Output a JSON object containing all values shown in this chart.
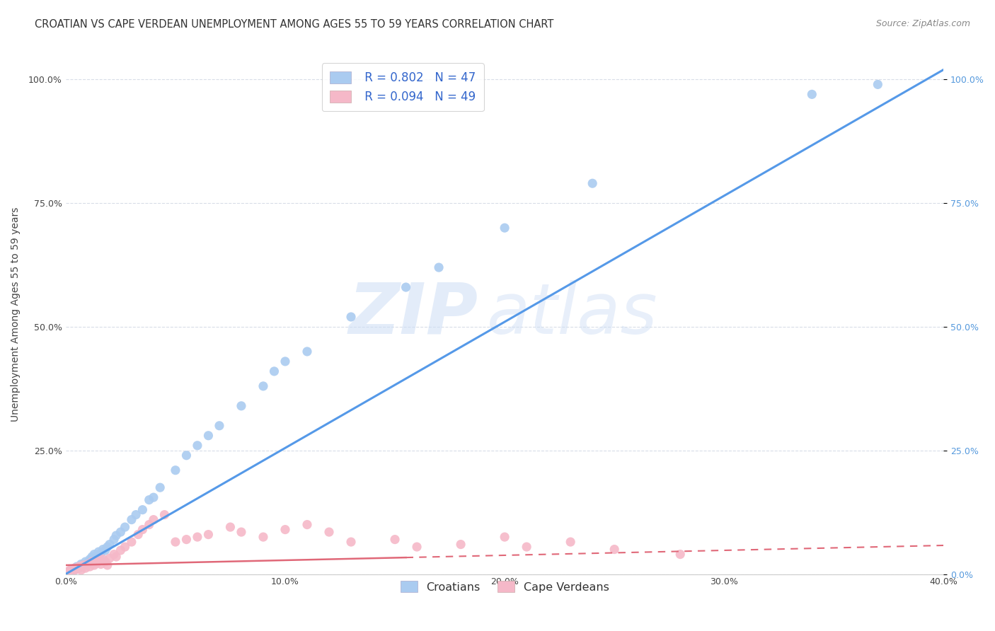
{
  "title": "CROATIAN VS CAPE VERDEAN UNEMPLOYMENT AMONG AGES 55 TO 59 YEARS CORRELATION CHART",
  "source": "Source: ZipAtlas.com",
  "ylabel": "Unemployment Among Ages 55 to 59 years",
  "xlim": [
    0.0,
    0.4
  ],
  "ylim": [
    0.0,
    1.05
  ],
  "x_ticks": [
    0.0,
    0.1,
    0.2,
    0.3,
    0.4
  ],
  "x_tick_labels": [
    "0.0%",
    "10.0%",
    "20.0%",
    "30.0%",
    "40.0%"
  ],
  "y_ticks": [
    0.0,
    0.25,
    0.5,
    0.75,
    1.0
  ],
  "y_tick_labels": [
    "",
    "25.0%",
    "50.0%",
    "75.0%",
    "100.0%"
  ],
  "y_tick_labels_right": [
    "0.0%",
    "25.0%",
    "50.0%",
    "75.0%",
    "100.0%"
  ],
  "croatian_color": "#aacbf0",
  "cape_verdean_color": "#f5b8c8",
  "trendline_croatian_color": "#5599e8",
  "trendline_cape_verdean_color": "#e06878",
  "watermark_zip": "ZIP",
  "watermark_atlas": "atlas",
  "legend_r_croatian": "R = 0.802",
  "legend_n_croatian": "N = 47",
  "legend_r_cape_verdean": "R = 0.094",
  "legend_n_cape_verdean": "N = 49",
  "croatian_x": [
    0.001,
    0.002,
    0.003,
    0.004,
    0.005,
    0.006,
    0.007,
    0.008,
    0.009,
    0.01,
    0.011,
    0.012,
    0.013,
    0.014,
    0.015,
    0.016,
    0.017,
    0.018,
    0.019,
    0.02,
    0.022,
    0.023,
    0.025,
    0.027,
    0.03,
    0.032,
    0.035,
    0.038,
    0.04,
    0.043,
    0.05,
    0.055,
    0.06,
    0.065,
    0.07,
    0.08,
    0.09,
    0.095,
    0.1,
    0.11,
    0.13,
    0.155,
    0.17,
    0.2,
    0.24,
    0.34,
    0.37
  ],
  "croatian_y": [
    0.005,
    0.003,
    0.01,
    0.008,
    0.015,
    0.012,
    0.02,
    0.018,
    0.025,
    0.022,
    0.03,
    0.035,
    0.04,
    0.038,
    0.045,
    0.042,
    0.05,
    0.048,
    0.055,
    0.06,
    0.07,
    0.078,
    0.085,
    0.095,
    0.11,
    0.12,
    0.13,
    0.15,
    0.155,
    0.175,
    0.21,
    0.24,
    0.26,
    0.28,
    0.3,
    0.34,
    0.38,
    0.41,
    0.43,
    0.45,
    0.52,
    0.58,
    0.62,
    0.7,
    0.79,
    0.97,
    0.99
  ],
  "cape_verdean_x": [
    0.001,
    0.002,
    0.003,
    0.004,
    0.005,
    0.006,
    0.007,
    0.008,
    0.009,
    0.01,
    0.011,
    0.012,
    0.013,
    0.014,
    0.015,
    0.016,
    0.017,
    0.018,
    0.019,
    0.02,
    0.022,
    0.023,
    0.025,
    0.027,
    0.03,
    0.033,
    0.035,
    0.038,
    0.04,
    0.045,
    0.05,
    0.055,
    0.06,
    0.065,
    0.075,
    0.08,
    0.09,
    0.1,
    0.11,
    0.12,
    0.13,
    0.15,
    0.16,
    0.18,
    0.2,
    0.21,
    0.23,
    0.25,
    0.28
  ],
  "cape_verdean_y": [
    0.005,
    0.008,
    0.003,
    0.012,
    0.01,
    0.015,
    0.008,
    0.018,
    0.012,
    0.02,
    0.015,
    0.025,
    0.018,
    0.022,
    0.028,
    0.02,
    0.03,
    0.025,
    0.018,
    0.032,
    0.04,
    0.035,
    0.048,
    0.055,
    0.065,
    0.08,
    0.09,
    0.1,
    0.11,
    0.12,
    0.065,
    0.07,
    0.075,
    0.08,
    0.095,
    0.085,
    0.075,
    0.09,
    0.1,
    0.085,
    0.065,
    0.07,
    0.055,
    0.06,
    0.075,
    0.055,
    0.065,
    0.05,
    0.04
  ],
  "background_color": "#ffffff",
  "grid_color": "#d8dde8",
  "title_fontsize": 10.5,
  "axis_label_fontsize": 10,
  "tick_fontsize": 9,
  "legend_fontsize": 12,
  "source_fontsize": 9
}
